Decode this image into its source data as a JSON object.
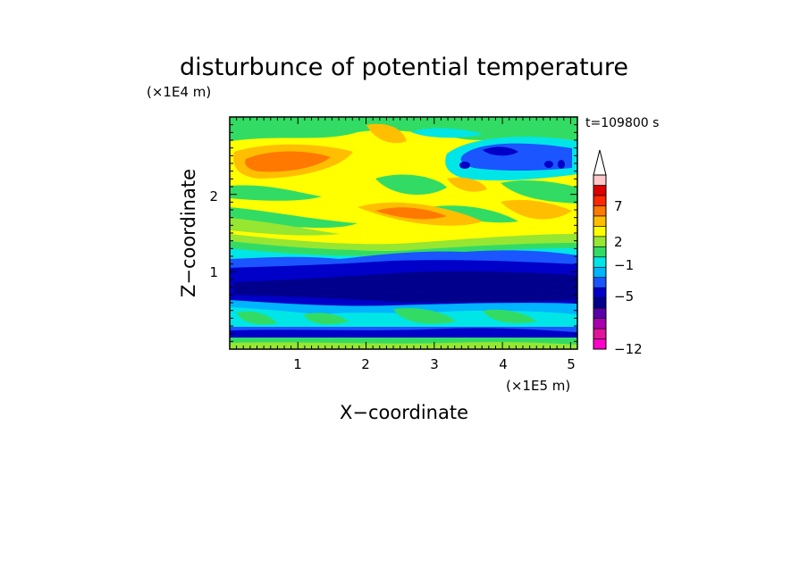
{
  "chart_data": {
    "type": "heatmap",
    "title": "disturbunce of potential temperature",
    "xlabel": "X−coordinate",
    "ylabel": "Z−coordinate",
    "x_unit": "(×1E5 m)",
    "y_unit": "(×1E4 m)",
    "time_label": "t=109800 s",
    "x_ticks": [
      "1",
      "2",
      "3",
      "4",
      "5"
    ],
    "y_ticks": [
      "1",
      "2"
    ],
    "xlim": [
      0,
      5.1
    ],
    "ylim": [
      0,
      3.0
    ],
    "colorbar": {
      "levels": [
        -12,
        -10,
        -8,
        -6,
        -5,
        -4,
        -3,
        -2,
        -1,
        0,
        1,
        2,
        3,
        5,
        7,
        9,
        11
      ],
      "colors": [
        "#ff00c8",
        "#e0149a",
        "#a800b0",
        "#5a00a8",
        "#00008c",
        "#0000c8",
        "#1a55ff",
        "#00b4ff",
        "#00e6e6",
        "#32dc64",
        "#96e632",
        "#ffff00",
        "#ffbe00",
        "#ff7800",
        "#ff2800",
        "#dc0000",
        "#ffc8c8"
      ],
      "tick_labels": [
        "7",
        "2",
        "−1",
        "−5",
        "−12"
      ],
      "extend": "max"
    },
    "layers": [
      {
        "z_range": [
          0.0,
          0.1
        ],
        "dominant": "green"
      },
      {
        "z_range": [
          0.15,
          0.25
        ],
        "dominant": "dark-blue"
      },
      {
        "z_range": [
          0.25,
          0.55
        ],
        "dominant": "cyan-green"
      },
      {
        "z_range": [
          0.6,
          1.1
        ],
        "dominant": "dark-blue"
      },
      {
        "z_range": [
          1.1,
          1.3
        ],
        "dominant": "cyan"
      },
      {
        "z_range": [
          1.3,
          2.4
        ],
        "dominant": "yellow-orange-green"
      },
      {
        "z_range": [
          2.3,
          2.6
        ],
        "dominant": "orange",
        "x_range": [
          0.2,
          1.3
        ]
      },
      {
        "z_range": [
          2.4,
          2.7
        ],
        "dominant": "blue",
        "x_range": [
          3.5,
          4.6
        ]
      },
      {
        "z_range": [
          2.6,
          3.0
        ],
        "dominant": "green-yellow"
      }
    ]
  }
}
